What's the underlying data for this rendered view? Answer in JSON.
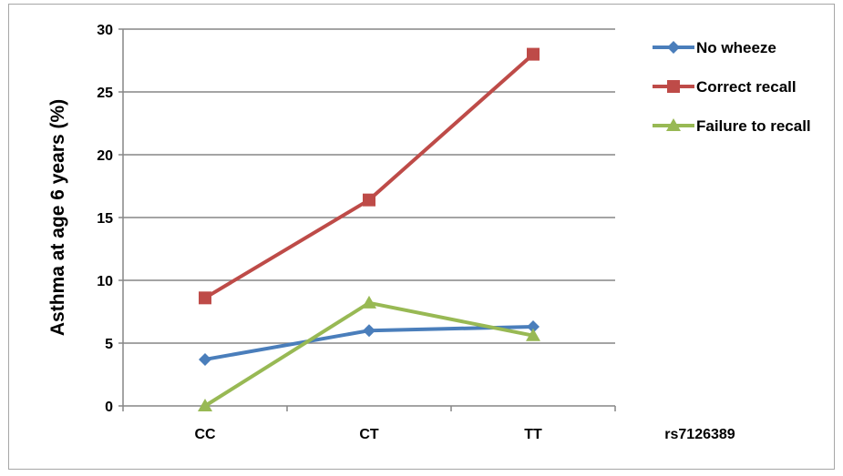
{
  "chart_data": {
    "type": "line",
    "categories": [
      "CC",
      "CT",
      "TT"
    ],
    "xlabel": "rs7126389",
    "ylabel": "Asthma at age 6 years (%)",
    "ylim": [
      0,
      30
    ],
    "yticks": [
      "0",
      "5",
      "10",
      "15",
      "20",
      "25",
      "30"
    ],
    "grid": true,
    "legend_position": "right",
    "series": [
      {
        "name": "No wheeze",
        "values": [
          3.7,
          6.0,
          6.3
        ],
        "color": "#4a7ebb",
        "marker": "diamond"
      },
      {
        "name": "Correct recall",
        "values": [
          8.6,
          16.4,
          28.0
        ],
        "color": "#be4b48",
        "marker": "square"
      },
      {
        "name": "Failure to recall",
        "values": [
          0.0,
          8.2,
          5.6
        ],
        "color": "#98b954",
        "marker": "triangle"
      }
    ]
  }
}
